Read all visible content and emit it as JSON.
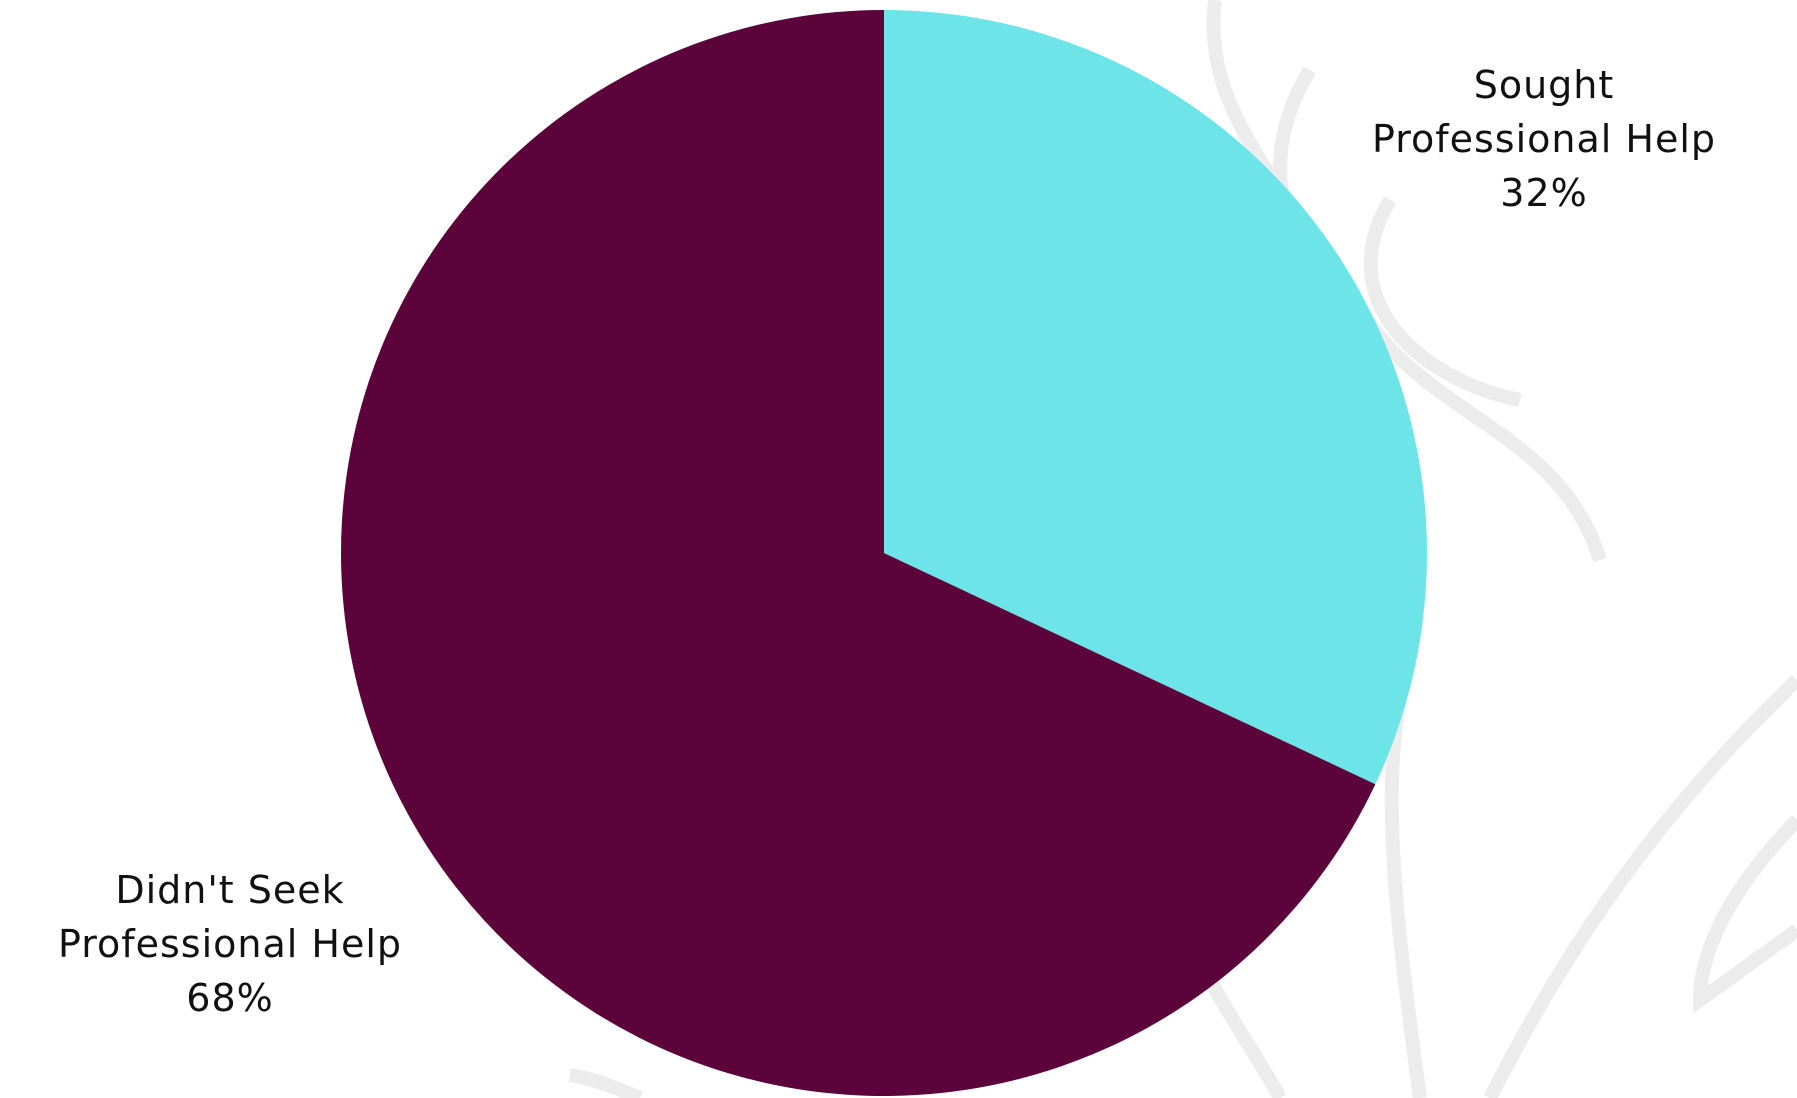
{
  "chart_data": {
    "type": "pie",
    "categories": [
      "Sought Professional Help",
      "Didn't Seek Professional Help"
    ],
    "values": [
      32,
      68
    ],
    "value_labels": [
      "32%",
      "68%"
    ],
    "colors": [
      "#6ce4e8",
      "#5b033a"
    ]
  }
}
